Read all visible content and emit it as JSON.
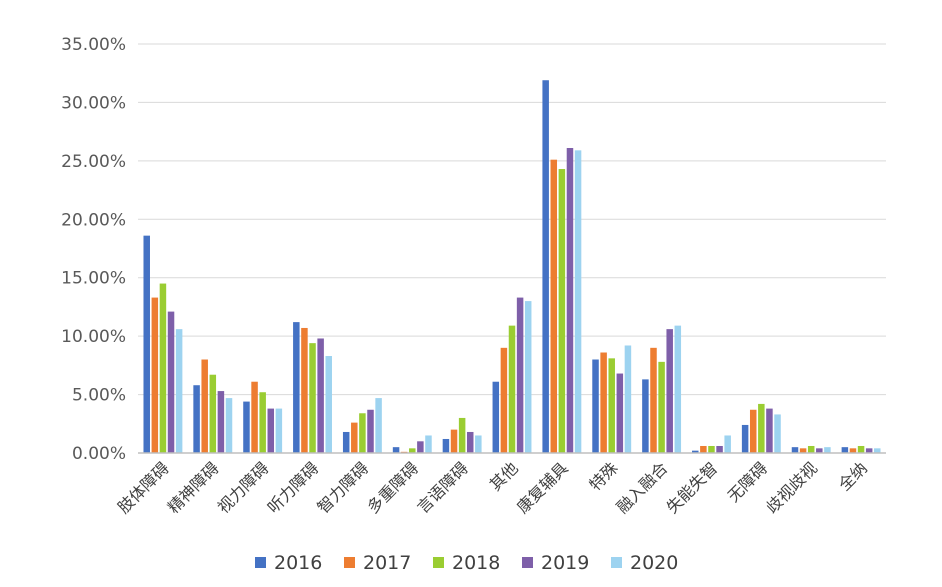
{
  "chart_data": {
    "type": "bar",
    "title": "",
    "xlabel": "",
    "ylabel": "",
    "ylim": [
      0,
      0.35
    ],
    "yticks": [
      "0.00%",
      "5.00%",
      "10.00%",
      "15.00%",
      "20.00%",
      "25.00%",
      "30.00%",
      "35.00%"
    ],
    "grid": true,
    "legend_position": "bottom",
    "categories": [
      "肢体障碍",
      "精神障碍",
      "视力障碍",
      "听力障碍",
      "智力障碍",
      "多重障碍",
      "言语障碍",
      "其他",
      "康复辅具",
      "特殊",
      "融入融合",
      "失能失智",
      "无障碍",
      "歧视歧视",
      "全纳"
    ],
    "series": [
      {
        "name": "2016",
        "color": "#4472C4",
        "values": [
          0.186,
          0.058,
          0.044,
          0.112,
          0.018,
          0.005,
          0.012,
          0.061,
          0.319,
          0.08,
          0.063,
          0.002,
          0.024,
          0.005,
          0.005
        ]
      },
      {
        "name": "2017",
        "color": "#ED7D31",
        "values": [
          0.133,
          0.08,
          0.061,
          0.107,
          0.026,
          0.001,
          0.02,
          0.09,
          0.251,
          0.086,
          0.09,
          0.006,
          0.037,
          0.004,
          0.004
        ]
      },
      {
        "name": "2018",
        "color": "#9ACD32",
        "values": [
          0.145,
          0.067,
          0.052,
          0.094,
          0.034,
          0.004,
          0.03,
          0.109,
          0.243,
          0.081,
          0.078,
          0.006,
          0.042,
          0.006,
          0.006
        ]
      },
      {
        "name": "2019",
        "color": "#7E5FA9",
        "values": [
          0.121,
          0.053,
          0.038,
          0.098,
          0.037,
          0.01,
          0.018,
          0.133,
          0.261,
          0.068,
          0.106,
          0.006,
          0.038,
          0.004,
          0.004
        ]
      },
      {
        "name": "2020",
        "color": "#9DD3F0",
        "values": [
          0.106,
          0.047,
          0.038,
          0.083,
          0.047,
          0.015,
          0.015,
          0.13,
          0.259,
          0.092,
          0.109,
          0.015,
          0.033,
          0.005,
          0.004
        ]
      }
    ]
  }
}
